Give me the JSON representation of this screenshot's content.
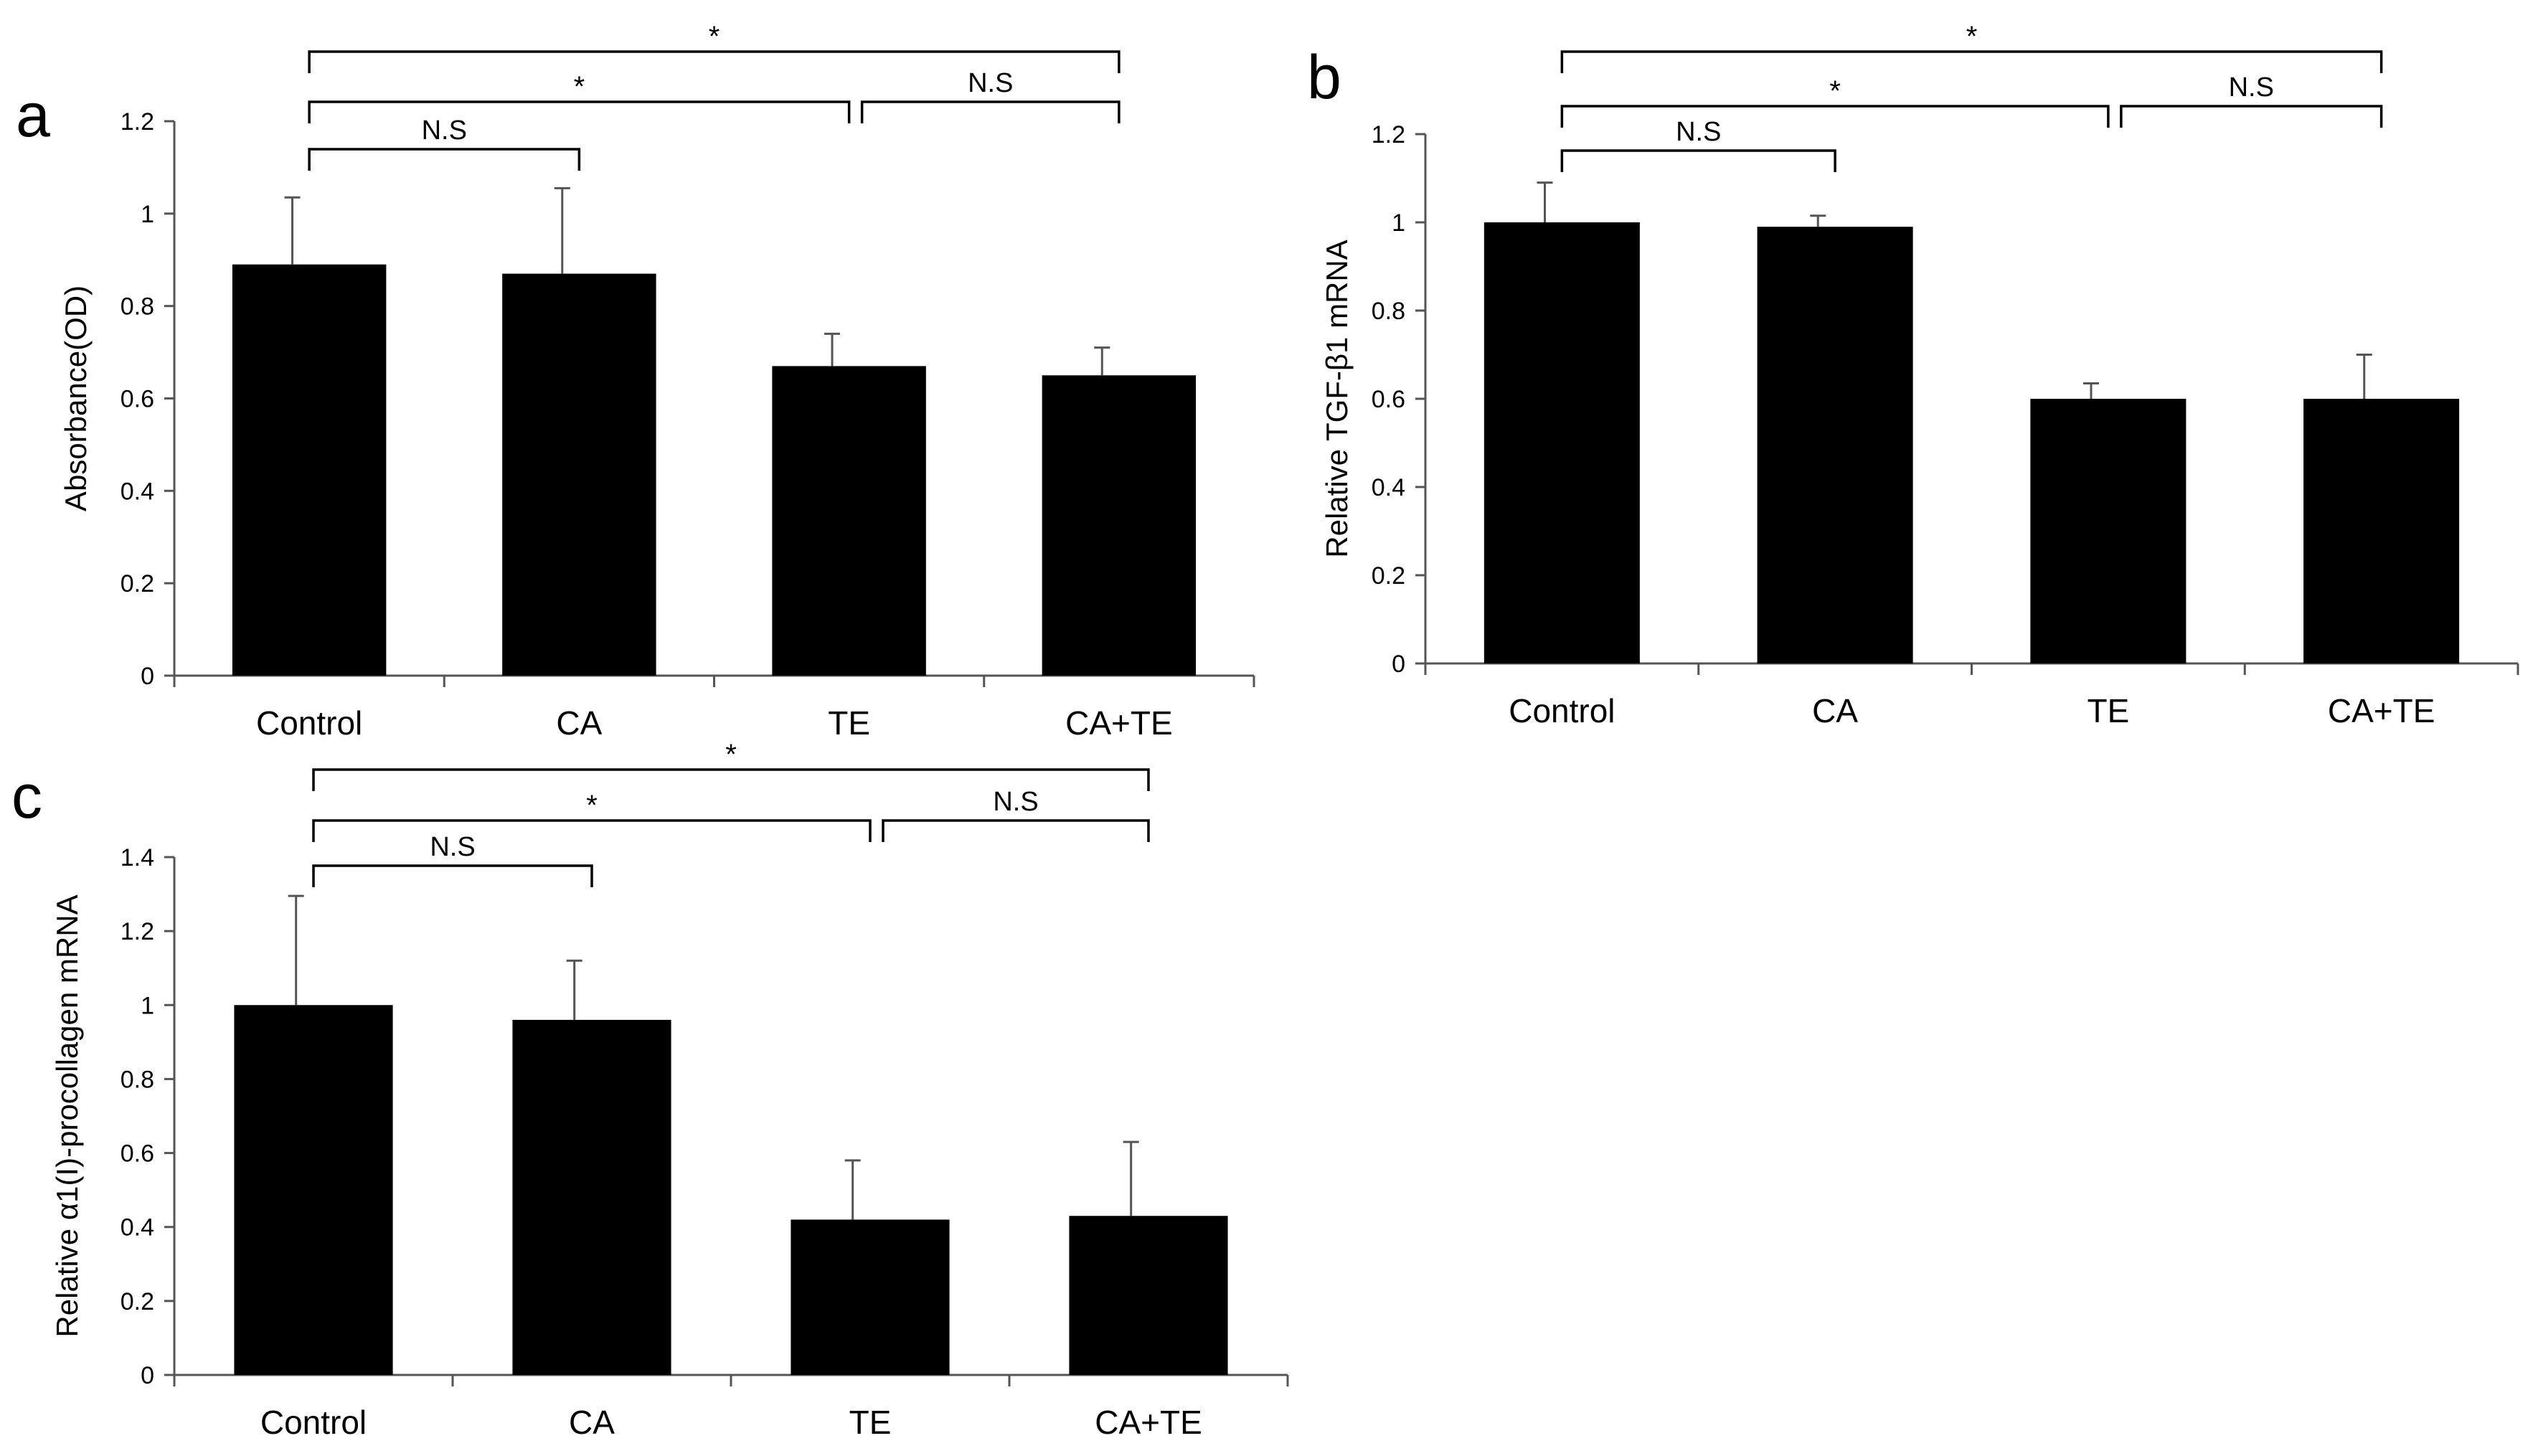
{
  "chart_data": [
    {
      "panel": "a",
      "type": "bar",
      "categories": [
        "Control",
        "CA",
        "TE",
        "CA+TE"
      ],
      "values": [
        0.89,
        0.87,
        0.67,
        0.65
      ],
      "errors": [
        0.145,
        0.185,
        0.07,
        0.06
      ],
      "ylabel": "Absorbance(OD)",
      "xlabel": "",
      "ylim": [
        0,
        1.2
      ],
      "yticks": [
        "0",
        "0.2",
        "0.4",
        "0.6",
        "0.8",
        "1",
        "1.2"
      ],
      "bar_color": "#000000",
      "significance": [
        {
          "from": 0,
          "to": 1,
          "label": "N.S",
          "level": 1
        },
        {
          "from": 0,
          "to": 2,
          "label": "*",
          "level": 2
        },
        {
          "from": 2,
          "to": 3,
          "label": "N.S",
          "level": 2
        },
        {
          "from": 0,
          "to": 3,
          "label": "*",
          "level": 3
        }
      ]
    },
    {
      "panel": "b",
      "type": "bar",
      "categories": [
        "Control",
        "CA",
        "TE",
        "CA+TE"
      ],
      "values": [
        1.0,
        0.99,
        0.6,
        0.6
      ],
      "errors": [
        0.09,
        0.025,
        0.035,
        0.1
      ],
      "ylabel": "Relative TGF-β1 mRNA",
      "xlabel": "",
      "ylim": [
        0,
        1.2
      ],
      "yticks": [
        "0",
        "0.2",
        "0.4",
        "0.6",
        "0.8",
        "1",
        "1.2"
      ],
      "bar_color": "#000000",
      "significance": [
        {
          "from": 0,
          "to": 1,
          "label": "N.S",
          "level": 1
        },
        {
          "from": 0,
          "to": 2,
          "label": "*",
          "level": 2
        },
        {
          "from": 2,
          "to": 3,
          "label": "N.S",
          "level": 2
        },
        {
          "from": 0,
          "to": 3,
          "label": "*",
          "level": 3
        }
      ]
    },
    {
      "panel": "c",
      "type": "bar",
      "categories": [
        "Control",
        "CA",
        "TE",
        "CA+TE"
      ],
      "values": [
        1.0,
        0.96,
        0.42,
        0.43
      ],
      "errors": [
        0.295,
        0.16,
        0.16,
        0.2
      ],
      "ylabel": "Relative α1(I)-procollagen mRNA",
      "xlabel": "",
      "ylim": [
        0,
        1.4
      ],
      "yticks": [
        "0",
        "0.2",
        "0.4",
        "0.6",
        "0.8",
        "1",
        "1.2",
        "1.4"
      ],
      "bar_color": "#000000",
      "significance": [
        {
          "from": 0,
          "to": 1,
          "label": "N.S",
          "level": 1
        },
        {
          "from": 0,
          "to": 2,
          "label": "*",
          "level": 2
        },
        {
          "from": 2,
          "to": 3,
          "label": "N.S",
          "level": 2
        },
        {
          "from": 0,
          "to": 3,
          "label": "*",
          "level": 3
        }
      ]
    }
  ]
}
